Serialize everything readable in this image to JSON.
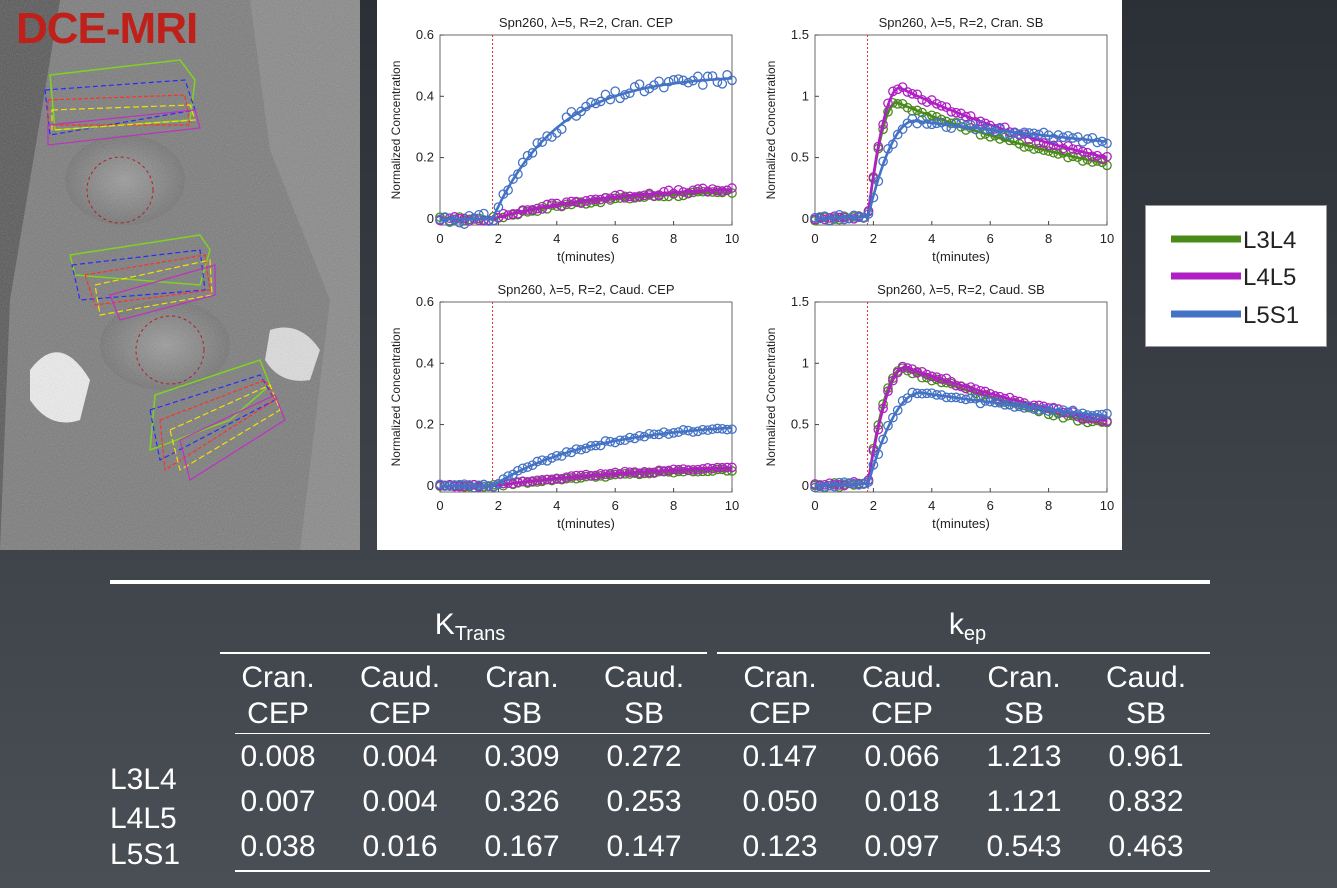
{
  "image_label": "DCE-MRI",
  "colors": {
    "L3L4": "#4a8a1a",
    "L4L5": "#b01fc4",
    "L5S1": "#4472c4",
    "roi_yellow": "#f2e000",
    "roi_blue": "#2a2aff",
    "roi_red": "#ff3030",
    "roi_green": "#7ed321",
    "label_red": "#c0201a"
  },
  "legend": [
    {
      "label": "L3L4",
      "color": "#4a8a1a"
    },
    {
      "label": "L4L5",
      "color": "#b01fc4"
    },
    {
      "label": "L5S1",
      "color": "#4472c4"
    }
  ],
  "chart_data": [
    {
      "type": "scatter",
      "title": "Spn260, λ=5, R=2, Cran. CEP",
      "xlabel": "t(minutes)",
      "ylabel": "Normalized Concentration",
      "xlim": [
        0,
        10
      ],
      "ylim": [
        -0.02,
        0.6
      ],
      "xticks": [
        0,
        2,
        4,
        6,
        8,
        10
      ],
      "yticks": [
        0,
        0.2,
        0.4,
        0.6
      ],
      "injection_time": 1.8,
      "series": [
        {
          "name": "L3L4",
          "color": "#4a8a1a",
          "final": 0.1,
          "tau": 4.0,
          "noise": 0.007
        },
        {
          "name": "L4L5",
          "color": "#b01fc4",
          "final": 0.11,
          "tau": 4.0,
          "noise": 0.008
        },
        {
          "name": "L5S1",
          "color": "#4472c4",
          "final": 0.47,
          "tau": 2.2,
          "noise": 0.018
        }
      ]
    },
    {
      "type": "scatter",
      "title": "Spn260, λ=5, R=2, Cran. SB",
      "xlabel": "t(minutes)",
      "ylabel": "Normalized Concentration",
      "xlim": [
        0,
        10
      ],
      "ylim": [
        -0.05,
        1.5
      ],
      "xticks": [
        0,
        2,
        4,
        6,
        8,
        10
      ],
      "yticks": [
        0,
        0.5,
        1,
        1.5
      ],
      "injection_time": 1.8,
      "series": [
        {
          "name": "L3L4",
          "color": "#4a8a1a",
          "peak": 0.95,
          "peak_t": 2.8,
          "end": 0.45,
          "noise": 0.02
        },
        {
          "name": "L4L5",
          "color": "#b01fc4",
          "peak": 1.07,
          "peak_t": 2.9,
          "end": 0.5,
          "noise": 0.02
        },
        {
          "name": "L5S1",
          "color": "#4472c4",
          "peak": 0.8,
          "peak_t": 3.4,
          "end": 0.63,
          "noise": 0.025
        }
      ]
    },
    {
      "type": "scatter",
      "title": "Spn260, λ=5, R=2, Caud. CEP",
      "xlabel": "t(minutes)",
      "ylabel": "Normalized Concentration",
      "xlim": [
        0,
        10
      ],
      "ylim": [
        -0.02,
        0.6
      ],
      "xticks": [
        0,
        2,
        4,
        6,
        8,
        10
      ],
      "yticks": [
        0,
        0.2,
        0.4,
        0.6
      ],
      "injection_time": 1.8,
      "series": [
        {
          "name": "L3L4",
          "color": "#4a8a1a",
          "final": 0.07,
          "tau": 6.0,
          "noise": 0.004
        },
        {
          "name": "L4L5",
          "color": "#b01fc4",
          "final": 0.08,
          "tau": 6.0,
          "noise": 0.004
        },
        {
          "name": "L5S1",
          "color": "#4472c4",
          "final": 0.21,
          "tau": 3.5,
          "noise": 0.006
        }
      ]
    },
    {
      "type": "scatter",
      "title": "Spn260, λ=5, R=2, Caud. SB",
      "xlabel": "t(minutes)",
      "ylabel": "Normalized Concentration",
      "xlim": [
        0,
        10
      ],
      "ylim": [
        -0.05,
        1.5
      ],
      "xticks": [
        0,
        2,
        4,
        6,
        8,
        10
      ],
      "yticks": [
        0,
        0.5,
        1,
        1.5
      ],
      "injection_time": 1.8,
      "series": [
        {
          "name": "L3L4",
          "color": "#4a8a1a",
          "peak": 0.96,
          "peak_t": 3.0,
          "end": 0.5,
          "noise": 0.02
        },
        {
          "name": "L4L5",
          "color": "#b01fc4",
          "peak": 0.97,
          "peak_t": 3.1,
          "end": 0.53,
          "noise": 0.02
        },
        {
          "name": "L5S1",
          "color": "#4472c4",
          "peak": 0.76,
          "peak_t": 3.6,
          "end": 0.57,
          "noise": 0.02
        }
      ]
    }
  ],
  "table": {
    "groups": [
      {
        "main": "K",
        "sub": "Trans"
      },
      {
        "main": "k",
        "sub": "ep"
      }
    ],
    "columns": [
      [
        "Cran.",
        "CEP"
      ],
      [
        "Caud.",
        "CEP"
      ],
      [
        "Cran.",
        "SB"
      ],
      [
        "Caud.",
        "SB"
      ],
      [
        "Cran.",
        "CEP"
      ],
      [
        "Caud.",
        "CEP"
      ],
      [
        "Cran.",
        "SB"
      ],
      [
        "Caud.",
        "SB"
      ]
    ],
    "rows": [
      {
        "label": "L3L4",
        "values": [
          "0.008",
          "0.004",
          "0.309",
          "0.272",
          "0.147",
          "0.066",
          "1.213",
          "0.961"
        ]
      },
      {
        "label": "L4L5",
        "values": [
          "0.007",
          "0.004",
          "0.326",
          "0.253",
          "0.050",
          "0.018",
          "1.121",
          "0.832"
        ]
      },
      {
        "label": "L5S1",
        "values": [
          "0.038",
          "0.016",
          "0.167",
          "0.147",
          "0.123",
          "0.097",
          "0.543",
          "0.463"
        ]
      }
    ]
  }
}
